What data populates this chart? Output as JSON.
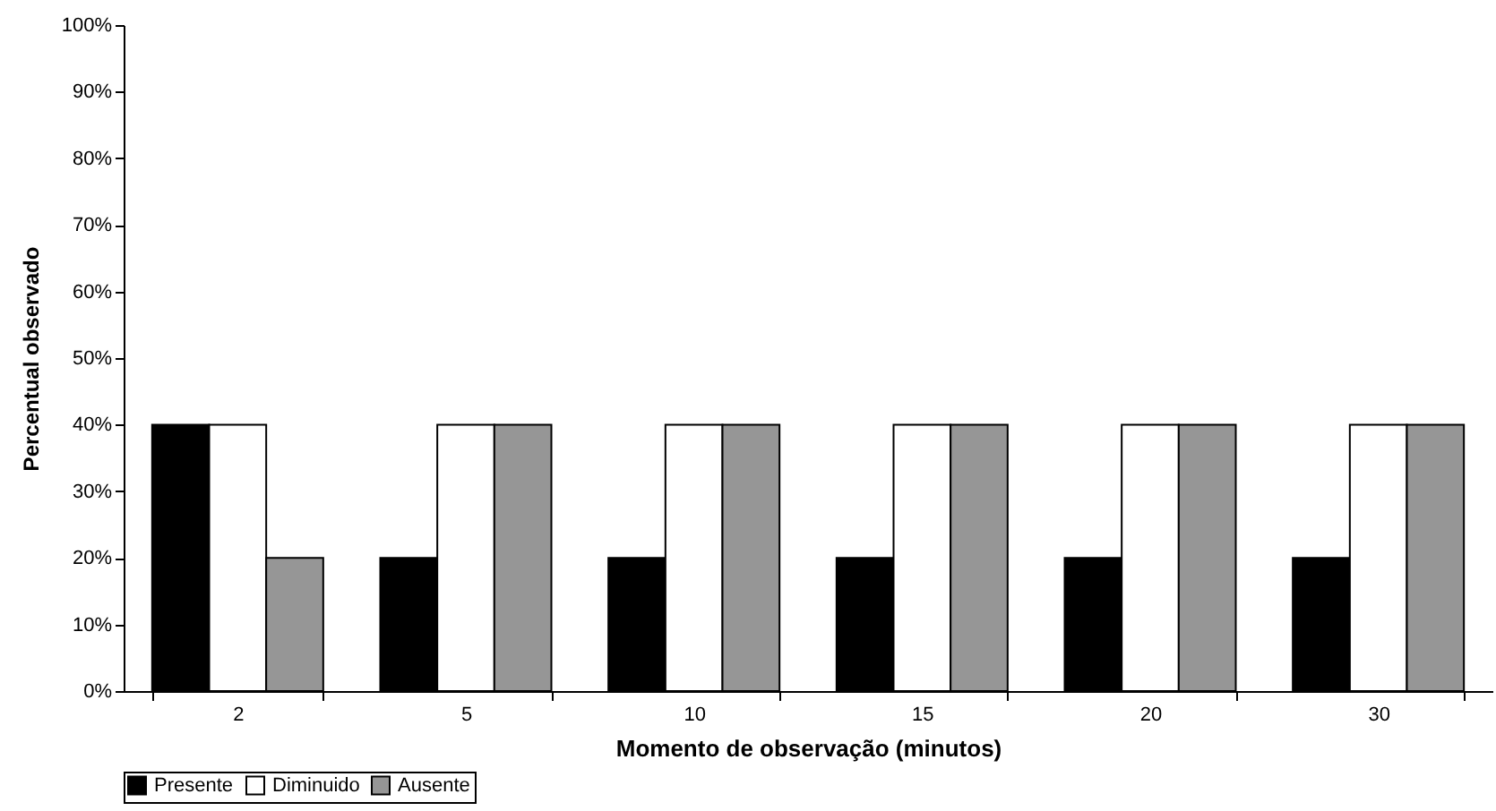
{
  "chart_data": {
    "type": "bar",
    "xlabel": "Momento de observação (minutos)",
    "ylabel": "Percentual observado",
    "categories": [
      "2",
      "5",
      "10",
      "15",
      "20",
      "30"
    ],
    "series": [
      {
        "name": "Presente",
        "color": "#000000",
        "values": [
          40,
          20,
          20,
          20,
          20,
          20
        ]
      },
      {
        "name": "Diminuido",
        "color": "#ffffff",
        "values": [
          40,
          40,
          40,
          40,
          40,
          40
        ]
      },
      {
        "name": "Ausente",
        "color": "#969696",
        "values": [
          20,
          40,
          40,
          40,
          40,
          40
        ]
      }
    ],
    "ylim": [
      0,
      100
    ],
    "yticks": [
      {
        "value": 0,
        "label": "0%"
      },
      {
        "value": 10,
        "label": "10%"
      },
      {
        "value": 20,
        "label": "20%"
      },
      {
        "value": 30,
        "label": "30%"
      },
      {
        "value": 40,
        "label": "40%"
      },
      {
        "value": 50,
        "label": "50%"
      },
      {
        "value": 60,
        "label": "60%"
      },
      {
        "value": 70,
        "label": "70%"
      },
      {
        "value": 80,
        "label": "80%"
      },
      {
        "value": 90,
        "label": "90%"
      },
      {
        "value": 100,
        "label": "100%"
      }
    ],
    "grid": false,
    "legend": "bottom"
  }
}
